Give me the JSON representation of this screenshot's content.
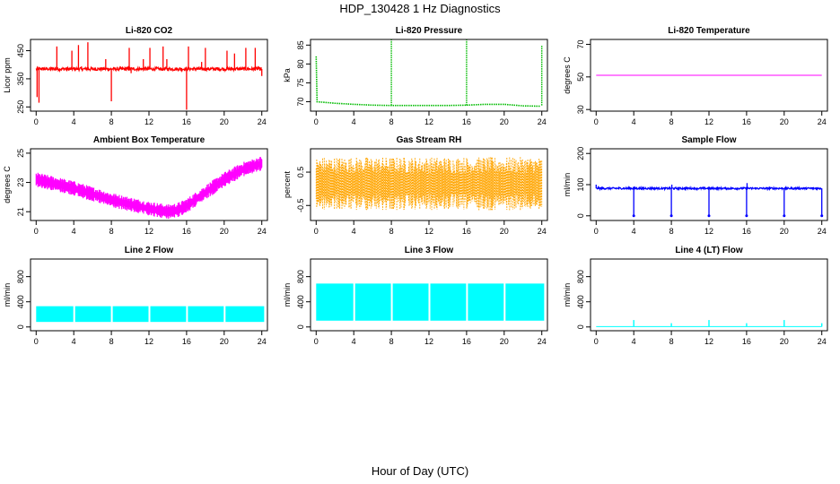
{
  "figure": {
    "title": "HDP_130428  1 Hz Diagnostics",
    "xlabel": "Hour of Day (UTC)",
    "x_ticks": [
      0,
      4,
      8,
      12,
      16,
      20,
      24
    ]
  },
  "chart_data": [
    {
      "type": "line",
      "title": "Li-820 CO2",
      "ylabel": "Licor ppm",
      "ylim": [
        235,
        490
      ],
      "yticks": [
        250,
        350,
        450
      ],
      "xlim": [
        -0.6,
        24.6
      ],
      "color": "#ff0000",
      "style": "noisy",
      "base": 385,
      "noise": 6,
      "spikes": [
        {
          "x": 0.1,
          "y": 285
        },
        {
          "x": 0.3,
          "y": 265
        },
        {
          "x": 2.2,
          "y": 465
        },
        {
          "x": 3.8,
          "y": 450
        },
        {
          "x": 4.5,
          "y": 470
        },
        {
          "x": 5.5,
          "y": 480
        },
        {
          "x": 7.4,
          "y": 420
        },
        {
          "x": 8.0,
          "y": 270
        },
        {
          "x": 9.9,
          "y": 460
        },
        {
          "x": 10.1,
          "y": 370
        },
        {
          "x": 11.4,
          "y": 420
        },
        {
          "x": 12.1,
          "y": 460
        },
        {
          "x": 13.5,
          "y": 465
        },
        {
          "x": 13.9,
          "y": 420
        },
        {
          "x": 16.0,
          "y": 240
        },
        {
          "x": 16.2,
          "y": 465
        },
        {
          "x": 17.6,
          "y": 410
        },
        {
          "x": 18.0,
          "y": 460
        },
        {
          "x": 20.3,
          "y": 450
        },
        {
          "x": 21.1,
          "y": 440
        },
        {
          "x": 22.3,
          "y": 460
        },
        {
          "x": 23.3,
          "y": 460
        },
        {
          "x": 23.6,
          "y": 395
        },
        {
          "x": 24.0,
          "y": 360
        }
      ]
    },
    {
      "type": "line",
      "title": "Li-820 Pressure",
      "ylabel": "kPa",
      "ylim": [
        67.5,
        86.5
      ],
      "yticks": [
        70,
        75,
        80,
        85
      ],
      "xlim": [
        -0.6,
        24.6
      ],
      "color": "#00bb00",
      "style": "path",
      "points": [
        [
          0,
          82
        ],
        [
          0.1,
          70
        ],
        [
          2,
          69.6
        ],
        [
          4,
          69.3
        ],
        [
          6,
          69.1
        ],
        [
          8,
          69.0
        ],
        [
          10,
          69.0
        ],
        [
          12,
          69.0
        ],
        [
          14,
          69.0
        ],
        [
          16,
          69.1
        ],
        [
          18,
          69.3
        ],
        [
          20,
          69.3
        ],
        [
          22,
          68.9
        ],
        [
          23.8,
          68.8
        ]
      ],
      "spikes": [
        {
          "x": 8.0,
          "y": 86.5
        },
        {
          "x": 16.0,
          "y": 86.5
        },
        {
          "x": 24.0,
          "y": 85
        }
      ],
      "dots": true
    },
    {
      "type": "line",
      "title": "Li-820 Temperature",
      "ylabel": "degrees C",
      "ylim": [
        29,
        73
      ],
      "yticks": [
        30,
        50,
        70
      ],
      "xlim": [
        -0.6,
        24.6
      ],
      "color": "#ff00ff",
      "style": "path",
      "points": [
        [
          0,
          51
        ],
        [
          24,
          51
        ]
      ],
      "spikes": [],
      "dots": false
    },
    {
      "type": "area",
      "title": "Ambient Box Temperature",
      "ylabel": "degrees C",
      "ylim": [
        20.4,
        25.3
      ],
      "yticks": [
        21,
        23,
        25
      ],
      "xlim": [
        -0.6,
        24.6
      ],
      "color": "#ff00ff",
      "style": "band",
      "center": [
        [
          0,
          23.2
        ],
        [
          2,
          22.9
        ],
        [
          4,
          22.6
        ],
        [
          6,
          22.2
        ],
        [
          8,
          21.8
        ],
        [
          10,
          21.5
        ],
        [
          12,
          21.2
        ],
        [
          14,
          21.0
        ],
        [
          15,
          21.1
        ],
        [
          16,
          21.4
        ],
        [
          18,
          22.3
        ],
        [
          20,
          23.2
        ],
        [
          22,
          23.9
        ],
        [
          24,
          24.3
        ]
      ],
      "half_width": 0.35,
      "jitter": 0.15
    },
    {
      "type": "area",
      "title": "Gas Stream RH",
      "ylabel": "percent",
      "ylim": [
        -0.95,
        1.2
      ],
      "yticks": [
        -0.5,
        0.5
      ],
      "extra_tick_labels": [
        "0.5",
        "-0.5"
      ],
      "xlim": [
        -0.6,
        24.6
      ],
      "color": "#ffa500",
      "style": "band",
      "center": [
        [
          0,
          0.15
        ],
        [
          24,
          0.15
        ]
      ],
      "half_width": 0.55,
      "jitter": 0.25,
      "hatch": true
    },
    {
      "type": "line",
      "title": "Sample Flow",
      "ylabel": "ml/min",
      "ylim": [
        -15,
        215
      ],
      "yticks": [
        0,
        100,
        200
      ],
      "xlim": [
        -0.6,
        24.6
      ],
      "color": "#0000ff",
      "style": "noisy",
      "base": 88,
      "noise": 3,
      "spikes": [
        {
          "x": 0,
          "y": 100
        },
        {
          "x": 4.0,
          "y": 0
        },
        {
          "x": 8.0,
          "y": 0
        },
        {
          "x": 8.05,
          "y": 100
        },
        {
          "x": 12.0,
          "y": 0
        },
        {
          "x": 16.0,
          "y": 0
        },
        {
          "x": 16.05,
          "y": 105
        },
        {
          "x": 20.0,
          "y": 0
        },
        {
          "x": 24.0,
          "y": 0
        }
      ],
      "dips_curve": true
    },
    {
      "type": "area",
      "title": "Line 2 Flow",
      "ylabel": "ml/min",
      "ylim": [
        -60,
        1080
      ],
      "yticks": [
        0,
        400,
        800
      ],
      "xlim": [
        -0.6,
        24.6
      ],
      "color": "#00ffff",
      "style": "blocks",
      "low": 80,
      "high": 330,
      "gaps": [
        4,
        8,
        12,
        16,
        20
      ],
      "end": 24.3
    },
    {
      "type": "area",
      "title": "Line 3 Flow",
      "ylabel": "ml/min",
      "ylim": [
        -60,
        1080
      ],
      "yticks": [
        0,
        400,
        800
      ],
      "xlim": [
        -0.6,
        24.6
      ],
      "color": "#00ffff",
      "style": "blocks",
      "low": 100,
      "high": 690,
      "gaps": [
        4,
        8,
        12,
        16,
        20
      ],
      "end": 24.3
    },
    {
      "type": "line",
      "title": "Line 4 (LT) Flow",
      "ylabel": "ml/min",
      "ylim": [
        -60,
        1080
      ],
      "yticks": [
        0,
        400,
        800
      ],
      "xlim": [
        -0.6,
        24.6
      ],
      "color": "#00ffff",
      "style": "path",
      "points": [
        [
          0,
          5
        ],
        [
          24,
          5
        ]
      ],
      "spikes": [
        {
          "x": 4.0,
          "y": 110
        },
        {
          "x": 8.0,
          "y": 60
        },
        {
          "x": 12.0,
          "y": 110
        },
        {
          "x": 16.0,
          "y": 60
        },
        {
          "x": 20.0,
          "y": 110
        },
        {
          "x": 24.0,
          "y": 60
        }
      ],
      "dots": false
    }
  ]
}
